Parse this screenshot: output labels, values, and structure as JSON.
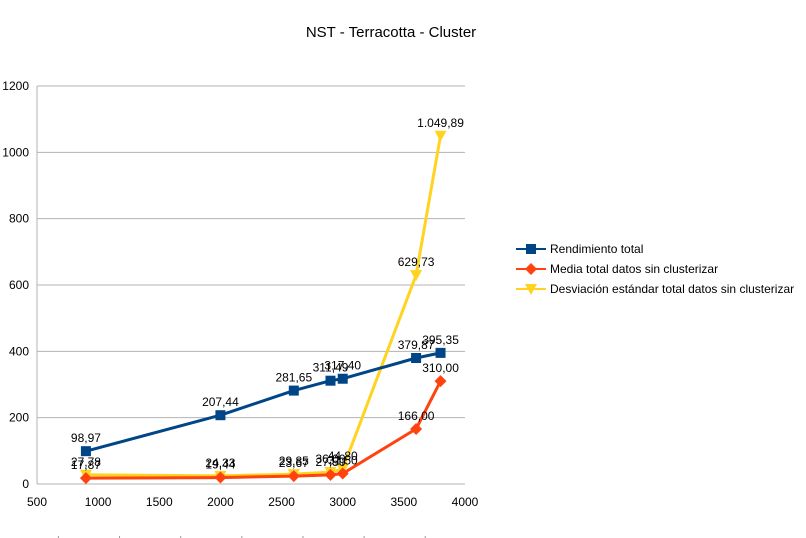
{
  "chart_data": {
    "type": "line",
    "title": "NST - Terracotta - Cluster",
    "xlabel": "",
    "ylabel": "",
    "xlim": [
      500,
      4000
    ],
    "ylim": [
      0,
      1200
    ],
    "x_ticks": [
      "500",
      "1000",
      "1500",
      "2000",
      "2500",
      "3000",
      "3500",
      "4000"
    ],
    "y_ticks": [
      "0",
      "200",
      "400",
      "600",
      "800",
      "1000",
      "1200"
    ],
    "grid": "horizontal",
    "legend_position": "right",
    "series": [
      {
        "name": "Rendimiento total",
        "color": "#004586",
        "marker": "square",
        "x": [
          900,
          2000,
          2600,
          2900,
          3000,
          3600,
          3800
        ],
        "y": [
          98.97,
          207.44,
          281.65,
          311.49,
          317.4,
          379.87,
          395.35
        ],
        "labels": [
          "98,97",
          "207,44",
          "281,65",
          "311,49",
          "317,40",
          "379,87",
          "395,35"
        ]
      },
      {
        "name": "Media total datos sin clusterizar",
        "color": "#ff420e",
        "marker": "diamond",
        "x": [
          900,
          2000,
          2600,
          2900,
          3000,
          3600,
          3800
        ],
        "y": [
          17.87,
          19.44,
          23.67,
          27.5,
          31.5,
          166.0,
          310.0
        ],
        "labels": [
          "17,87",
          "19,44",
          "23,67",
          "27,50",
          "31,50",
          "166,00",
          "310,00"
        ]
      },
      {
        "name": "Desviación estándar total datos sin clusterizar",
        "color": "#ffd320",
        "marker": "triangle-down",
        "x": [
          900,
          2000,
          2600,
          2900,
          3000,
          3600,
          3800
        ],
        "y": [
          27.78,
          24.33,
          29.85,
          36.0,
          44.8,
          629.73,
          1049.89
        ],
        "labels": [
          "27,78",
          "24,33",
          "29,85",
          "36,00",
          "44,80",
          "629,73",
          "1.049,89"
        ]
      }
    ]
  }
}
